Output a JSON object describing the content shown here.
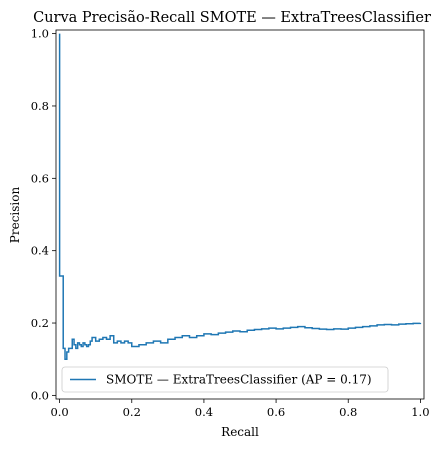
{
  "chart_data": {
    "type": "line",
    "title": "Curva Precisão-Recall SMOTE — ExtraTreesClassifier",
    "xlabel": "Recall",
    "ylabel": "Precision",
    "xlim": [
      -0.01,
      1.01
    ],
    "ylim": [
      -0.01,
      1.01
    ],
    "xticks": [
      0.0,
      0.2,
      0.4,
      0.6,
      0.8,
      1.0
    ],
    "xtick_labels": [
      "0.0",
      "0.2",
      "0.4",
      "0.6",
      "0.8",
      "1.0"
    ],
    "yticks": [
      0.0,
      0.2,
      0.4,
      0.6,
      0.8,
      1.0
    ],
    "ytick_labels": [
      "0.0",
      "0.2",
      "0.4",
      "0.6",
      "0.8",
      "1.0"
    ],
    "grid": false,
    "legend_position": "lower-left",
    "series": [
      {
        "name": "SMOTE — ExtraTreesClassifier (AP = 0.17)",
        "color": "#1f77b4",
        "step": "post",
        "recall": [
          0.0,
          0.0,
          0.005,
          0.005,
          0.01,
          0.01,
          0.015,
          0.015,
          0.02,
          0.02,
          0.025,
          0.025,
          0.03,
          0.03,
          0.035,
          0.035,
          0.04,
          0.04,
          0.045,
          0.045,
          0.05,
          0.05,
          0.055,
          0.055,
          0.06,
          0.06,
          0.065,
          0.065,
          0.07,
          0.07,
          0.075,
          0.075,
          0.08,
          0.08,
          0.085,
          0.085,
          0.09,
          0.09,
          0.1,
          0.1,
          0.11,
          0.11,
          0.12,
          0.12,
          0.13,
          0.13,
          0.14,
          0.14,
          0.15,
          0.15,
          0.16,
          0.16,
          0.17,
          0.17,
          0.18,
          0.18,
          0.19,
          0.19,
          0.2,
          0.2,
          0.22,
          0.22,
          0.24,
          0.24,
          0.26,
          0.26,
          0.28,
          0.28,
          0.3,
          0.3,
          0.32,
          0.32,
          0.34,
          0.34,
          0.36,
          0.36,
          0.38,
          0.38,
          0.4,
          0.4,
          0.42,
          0.42,
          0.44,
          0.44,
          0.46,
          0.46,
          0.48,
          0.48,
          0.5,
          0.5,
          0.52,
          0.52,
          0.54,
          0.54,
          0.56,
          0.56,
          0.58,
          0.58,
          0.6,
          0.6,
          0.62,
          0.62,
          0.64,
          0.64,
          0.66,
          0.66,
          0.68,
          0.68,
          0.7,
          0.7,
          0.72,
          0.72,
          0.74,
          0.74,
          0.76,
          0.76,
          0.78,
          0.78,
          0.8,
          0.8,
          0.82,
          0.82,
          0.84,
          0.84,
          0.86,
          0.86,
          0.88,
          0.88,
          0.9,
          0.9,
          0.92,
          0.92,
          0.94,
          0.94,
          0.96,
          0.96,
          0.98,
          0.98,
          1.0,
          1.0
        ],
        "precision": [
          1.0,
          0.33,
          0.33,
          0.33,
          0.33,
          0.13,
          0.13,
          0.1,
          0.1,
          0.12,
          0.12,
          0.13,
          0.13,
          0.13,
          0.13,
          0.155,
          0.155,
          0.14,
          0.14,
          0.13,
          0.13,
          0.145,
          0.145,
          0.14,
          0.14,
          0.135,
          0.135,
          0.145,
          0.145,
          0.14,
          0.14,
          0.135,
          0.135,
          0.14,
          0.14,
          0.15,
          0.15,
          0.16,
          0.16,
          0.15,
          0.15,
          0.155,
          0.155,
          0.16,
          0.16,
          0.155,
          0.155,
          0.165,
          0.165,
          0.145,
          0.145,
          0.15,
          0.15,
          0.145,
          0.145,
          0.15,
          0.15,
          0.145,
          0.145,
          0.135,
          0.135,
          0.14,
          0.14,
          0.145,
          0.145,
          0.15,
          0.15,
          0.145,
          0.145,
          0.155,
          0.155,
          0.16,
          0.16,
          0.165,
          0.165,
          0.16,
          0.16,
          0.165,
          0.165,
          0.17,
          0.17,
          0.168,
          0.168,
          0.172,
          0.172,
          0.175,
          0.175,
          0.178,
          0.178,
          0.176,
          0.176,
          0.18,
          0.18,
          0.182,
          0.182,
          0.184,
          0.184,
          0.186,
          0.186,
          0.184,
          0.184,
          0.186,
          0.186,
          0.188,
          0.188,
          0.19,
          0.19,
          0.187,
          0.187,
          0.185,
          0.185,
          0.183,
          0.183,
          0.182,
          0.182,
          0.184,
          0.184,
          0.183,
          0.183,
          0.186,
          0.186,
          0.188,
          0.188,
          0.19,
          0.19,
          0.192,
          0.192,
          0.195,
          0.195,
          0.196,
          0.196,
          0.195,
          0.195,
          0.197,
          0.197,
          0.198,
          0.198,
          0.199,
          0.199,
          0.2
        ]
      }
    ]
  }
}
